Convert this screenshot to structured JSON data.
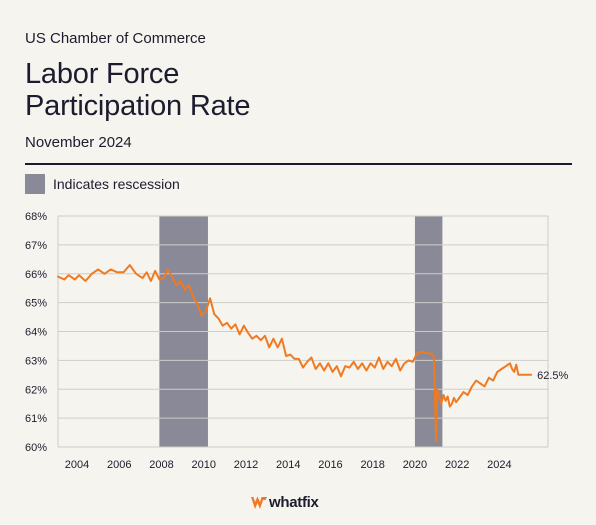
{
  "source": "US Chamber of Commerce",
  "title_line1": "Labor Force",
  "title_line2": "Participation Rate",
  "subtitle": "November 2024",
  "legend": {
    "label": "Indicates rescession"
  },
  "brand": {
    "name": "whatfix"
  },
  "colors": {
    "line": "#f07a22",
    "recession": "#8a8998",
    "grid": "#cfcdc7",
    "text": "#1c1c2e"
  },
  "chart_data": {
    "type": "line",
    "xlim": [
      2003.1,
      2026.3
    ],
    "ylim": [
      60,
      68
    ],
    "yticks": [
      60,
      61,
      62,
      63,
      64,
      65,
      66,
      67,
      68
    ],
    "ytick_labels": [
      "60%",
      "61%",
      "62%",
      "63%",
      "64%",
      "65%",
      "66%",
      "67%",
      "68%"
    ],
    "xticks": [
      2004,
      2006,
      2008,
      2010,
      2012,
      2014,
      2016,
      2018,
      2020,
      2022,
      2024
    ],
    "xtick_labels": [
      "2004",
      "2006",
      "2008",
      "2010",
      "2012",
      "2014",
      "2016",
      "2018",
      "2020",
      "2022",
      "2024"
    ],
    "recessions": [
      [
        2007.9,
        2010.2
      ],
      [
        2020.0,
        2021.3
      ]
    ],
    "end_label": "62.5%",
    "series": [
      {
        "x": [
          2003.1,
          2003.4,
          2003.6,
          2003.9,
          2004.1,
          2004.4,
          2004.7,
          2005.0,
          2005.3,
          2005.6,
          2005.9,
          2006.2,
          2006.5,
          2006.8,
          2007.1,
          2007.3,
          2007.5,
          2007.7,
          2007.9,
          2008.1,
          2008.3,
          2008.5,
          2008.7,
          2008.9,
          2009.1,
          2009.3,
          2009.5,
          2009.7,
          2009.9,
          2010.1,
          2010.3,
          2010.5,
          2010.7,
          2010.9,
          2011.1,
          2011.3,
          2011.5,
          2011.7,
          2011.9,
          2012.1,
          2012.3,
          2012.5,
          2012.7,
          2012.9,
          2013.1,
          2013.3,
          2013.5,
          2013.7,
          2013.9,
          2014.1,
          2014.3,
          2014.5,
          2014.7,
          2014.9,
          2015.1,
          2015.3,
          2015.5,
          2015.7,
          2015.9,
          2016.1,
          2016.3,
          2016.5,
          2016.7,
          2016.9,
          2017.1,
          2017.3,
          2017.5,
          2017.7,
          2017.9,
          2018.1,
          2018.3,
          2018.5,
          2018.7,
          2018.9,
          2019.1,
          2019.3,
          2019.5,
          2019.7,
          2019.9,
          2020.1,
          2020.3,
          2020.5,
          2020.7,
          2020.9,
          2021.0,
          2021.05,
          2021.15,
          2021.25,
          2021.35,
          2021.45,
          2021.55,
          2021.65,
          2021.75,
          2021.85,
          2021.95,
          2022.1,
          2022.3,
          2022.5,
          2022.7,
          2022.9,
          2023.1,
          2023.3,
          2023.5,
          2023.7,
          2023.9,
          2024.1,
          2024.3,
          2024.5,
          2024.6,
          2024.7,
          2024.8,
          2024.9,
          2025.1,
          2025.3,
          2025.5
        ],
        "y": [
          65.9,
          65.8,
          65.95,
          65.8,
          65.95,
          65.75,
          66.0,
          66.15,
          66.0,
          66.15,
          66.05,
          66.05,
          66.3,
          66.0,
          65.85,
          66.05,
          65.75,
          66.1,
          65.8,
          65.85,
          66.15,
          65.9,
          65.6,
          65.75,
          65.45,
          65.6,
          65.2,
          64.95,
          64.55,
          64.7,
          65.15,
          64.6,
          64.45,
          64.2,
          64.3,
          64.1,
          64.25,
          63.9,
          64.2,
          63.95,
          63.75,
          63.85,
          63.7,
          63.85,
          63.45,
          63.75,
          63.45,
          63.75,
          63.15,
          63.2,
          63.05,
          63.05,
          62.75,
          62.95,
          63.1,
          62.7,
          62.9,
          62.65,
          62.9,
          62.6,
          62.8,
          62.45,
          62.8,
          62.75,
          62.95,
          62.7,
          62.9,
          62.65,
          62.9,
          62.75,
          63.1,
          62.7,
          62.95,
          62.8,
          63.05,
          62.65,
          62.9,
          63.0,
          62.95,
          63.25,
          63.3,
          63.25,
          63.25,
          63.15,
          60.2,
          62.0,
          61.7,
          61.5,
          61.8,
          61.6,
          61.75,
          61.4,
          61.5,
          61.7,
          61.55,
          61.7,
          61.9,
          61.8,
          62.1,
          62.3,
          62.2,
          62.1,
          62.4,
          62.3,
          62.6,
          62.7,
          62.8,
          62.9,
          62.7,
          62.6,
          62.85,
          62.5,
          62.5,
          62.5,
          62.5
        ]
      }
    ]
  }
}
